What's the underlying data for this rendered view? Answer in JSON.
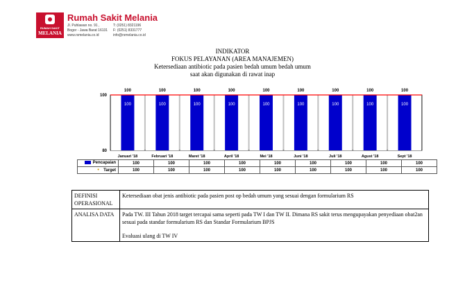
{
  "header": {
    "hospital_name": "Rumah Sakit Melania",
    "logo_line1": "RUMAH SAKIT",
    "logo_line2": "MELANIA",
    "address_line1": "Jl. Puhlawan no. 91 ,",
    "address_line2": "Bogor - Jawa Barat 16131",
    "website": "www.rsmelania.co.id",
    "phone_t": "T:   (0251) 8321196",
    "phone_f": "F:   (0251) 8331777",
    "email": "info@rsmelania.co.id"
  },
  "titles": {
    "line1": "INDIKATOR",
    "line2": "FOKUS PELAYANAN (AREA MANAJEMEN)",
    "line3": "Ketersediaan antibiotic pada pasien bedah umum bedah umum",
    "line4": "saat akan digunakan di rawat inap"
  },
  "chart_data": {
    "type": "bar",
    "categories": [
      "Januari '18",
      "Februari '18",
      "Maret '18",
      "April '18",
      "Mei '18",
      "Juni '18",
      "Juli '18",
      "Agust '18",
      "Sept '18"
    ],
    "series": [
      {
        "name": "Pencapaian",
        "type": "bar",
        "values": [
          100,
          100,
          100,
          100,
          100,
          100,
          100,
          100,
          100
        ],
        "color": "#0000cc"
      },
      {
        "name": "Target",
        "type": "line",
        "values": [
          100,
          100,
          100,
          100,
          100,
          100,
          100,
          100,
          100
        ],
        "color": "#ff0000"
      }
    ],
    "ylim": [
      80,
      100
    ],
    "yticks": [
      80,
      100
    ],
    "grid": false,
    "legend": "data table below chart",
    "plot_background": "#c0c0c0"
  },
  "info": {
    "definisi_label": "DEFINISI OPERASIONAL",
    "definisi_text": "Ketersediaan obat jenis antibiotic pada pasien post op bedah umum yang sesuai dengan formularium RS",
    "analisa_label": "ANALISA DATA",
    "analisa_text": "Pada TW. III Tahun 2018 target tercapai sama seperti pada TW I dan TW II. Dimana RS sakit terus mengupayakan penyediaan obat2an sesuai pada standar formularium RS dan Standar Formularium BPJS",
    "evaluasi_text": "Evaluasi ulang di TW IV"
  }
}
